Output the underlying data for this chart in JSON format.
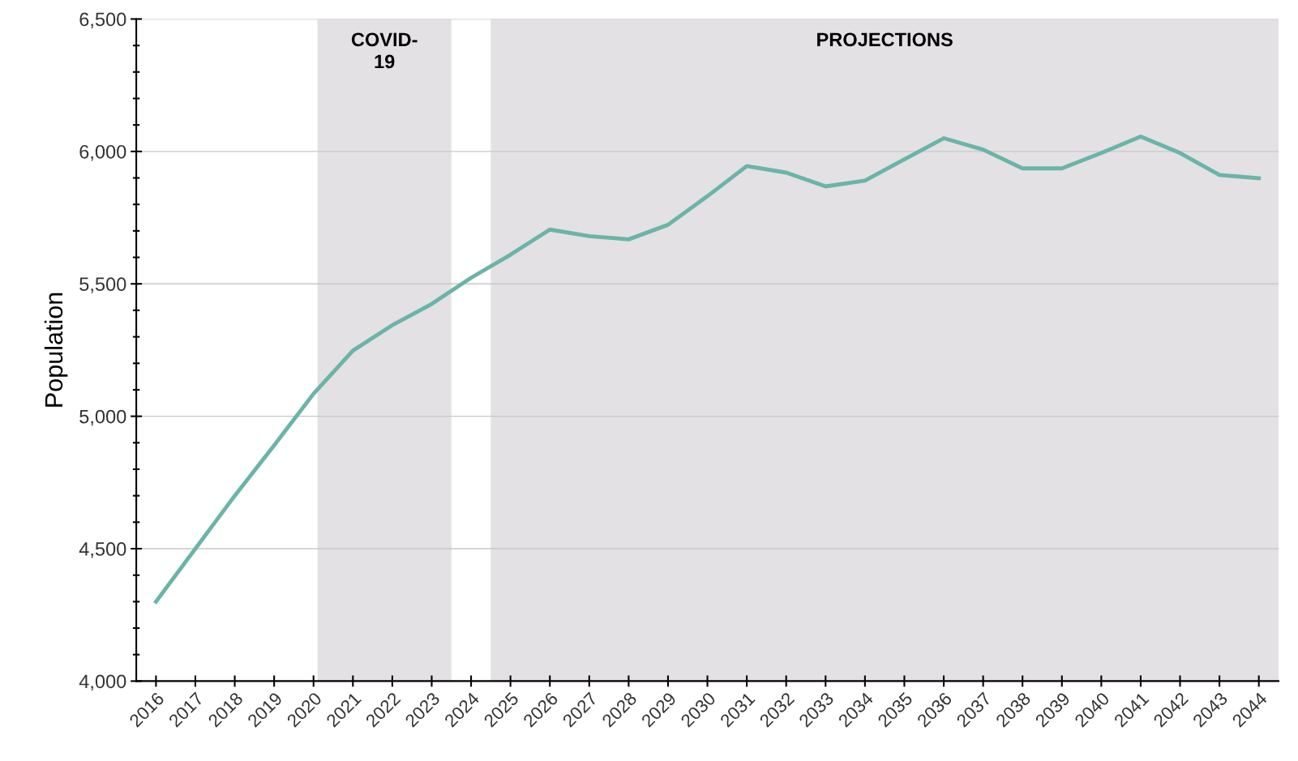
{
  "chart_data": {
    "type": "line",
    "ylabel": "Population",
    "x": [
      2016,
      2017,
      2018,
      2019,
      2020,
      2021,
      2022,
      2023,
      2024,
      2025,
      2026,
      2027,
      2028,
      2029,
      2030,
      2031,
      2032,
      2033,
      2034,
      2035,
      2036,
      2037,
      2038,
      2039,
      2040,
      2041,
      2042,
      2043,
      2044
    ],
    "series": [
      {
        "color": "#6ab4a8",
        "values": [
          4300,
          4500,
          4700,
          4890,
          5085,
          5248,
          5344,
          5424,
          5523,
          5610,
          5705,
          5680,
          5668,
          5723,
          5831,
          5945,
          5920,
          5868,
          5890,
          5970,
          6050,
          6007,
          5936,
          5936,
          5994,
          6056,
          5994,
          5911,
          5899
        ]
      }
    ],
    "xlim": [
      2015.5,
      2044.5
    ],
    "xticks": [
      {
        "value": 2016,
        "label": "2016"
      },
      {
        "value": 2017,
        "label": "2017"
      },
      {
        "value": 2018,
        "label": "2018"
      },
      {
        "value": 2019,
        "label": "2019"
      },
      {
        "value": 2020,
        "label": "2020"
      },
      {
        "value": 2021,
        "label": "2021"
      },
      {
        "value": 2022,
        "label": "2022"
      },
      {
        "value": 2023,
        "label": "2023"
      },
      {
        "value": 2024,
        "label": "2024"
      },
      {
        "value": 2025,
        "label": "2025"
      },
      {
        "value": 2026,
        "label": "2026"
      },
      {
        "value": 2027,
        "label": "2027"
      },
      {
        "value": 2028,
        "label": "2028"
      },
      {
        "value": 2029,
        "label": "2029"
      },
      {
        "value": 2030,
        "label": "2030"
      },
      {
        "value": 2031,
        "label": "2031"
      },
      {
        "value": 2032,
        "label": "2032"
      },
      {
        "value": 2033,
        "label": "2033"
      },
      {
        "value": 2034,
        "label": "2034"
      },
      {
        "value": 2035,
        "label": "2035"
      },
      {
        "value": 2036,
        "label": "2036"
      },
      {
        "value": 2037,
        "label": "2037"
      },
      {
        "value": 2038,
        "label": "2038"
      },
      {
        "value": 2039,
        "label": "2039"
      },
      {
        "value": 2040,
        "label": "2040"
      },
      {
        "value": 2041,
        "label": "2041"
      },
      {
        "value": 2042,
        "label": "2042"
      },
      {
        "value": 2043,
        "label": "2043"
      },
      {
        "value": 2044,
        "label": "2044"
      }
    ],
    "ylim": [
      4000,
      6500
    ],
    "yticks": [
      {
        "value": 4000,
        "label": "4,000"
      },
      {
        "value": 4100,
        "label": null
      },
      {
        "value": 4200,
        "label": null
      },
      {
        "value": 4300,
        "label": null
      },
      {
        "value": 4400,
        "label": null
      },
      {
        "value": 4500,
        "label": "4,500"
      },
      {
        "value": 4600,
        "label": null
      },
      {
        "value": 4700,
        "label": null
      },
      {
        "value": 4800,
        "label": null
      },
      {
        "value": 4900,
        "label": null
      },
      {
        "value": 5000,
        "label": "5,000"
      },
      {
        "value": 5100,
        "label": null
      },
      {
        "value": 5200,
        "label": null
      },
      {
        "value": 5300,
        "label": null
      },
      {
        "value": 5400,
        "label": null
      },
      {
        "value": 5500,
        "label": "5,500"
      },
      {
        "value": 5600,
        "label": null
      },
      {
        "value": 5700,
        "label": null
      },
      {
        "value": 5800,
        "label": null
      },
      {
        "value": 5900,
        "label": null
      },
      {
        "value": 6000,
        "label": "6,000"
      },
      {
        "value": 6100,
        "label": null
      },
      {
        "value": 6200,
        "label": null
      },
      {
        "value": 6300,
        "label": null
      },
      {
        "value": 6400,
        "label": null
      },
      {
        "value": 6500,
        "label": "6,500"
      }
    ],
    "bands": [
      {
        "axis": "x",
        "from": 2020.1,
        "to": 2023.5,
        "label": "COVID-\n19",
        "color": "#e3e1e3"
      },
      {
        "axis": "x",
        "from": 2024.5,
        "to": 2044.5,
        "label": "PROJECTIONS",
        "color": "#e3e1e3"
      }
    ],
    "grid": "y",
    "legend": false,
    "marker": "none",
    "line_style": "solid"
  }
}
